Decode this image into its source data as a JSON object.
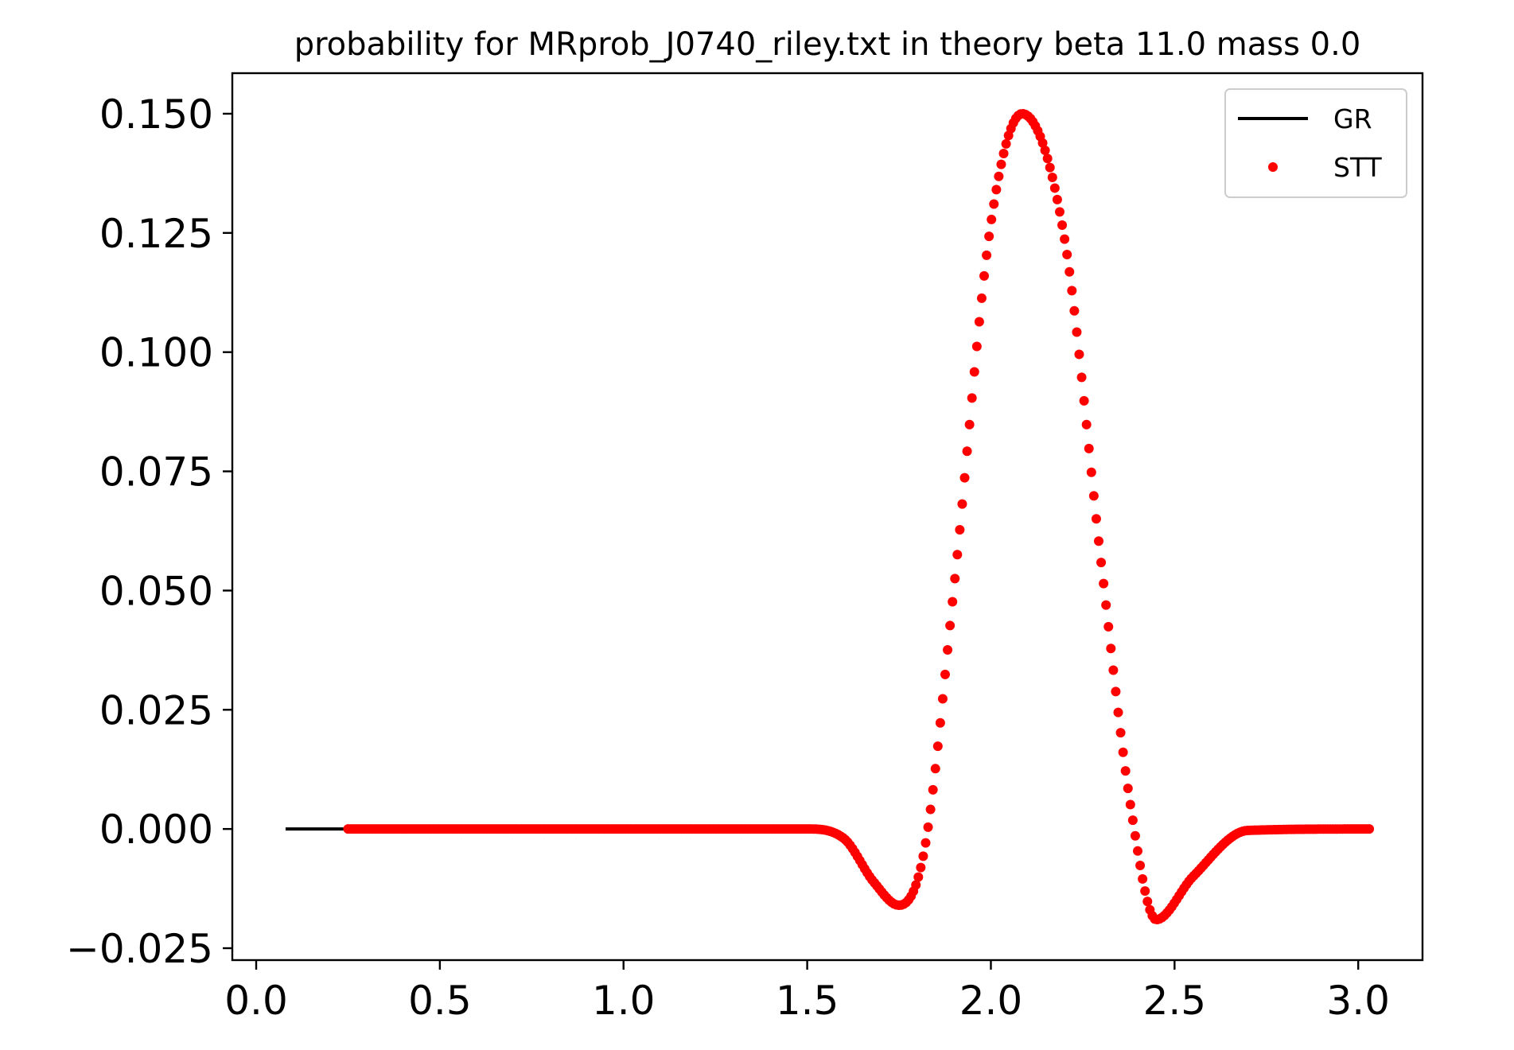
{
  "chart_data": {
    "type": "scatter",
    "title": "probability for MRprob_J0740_riley.txt in theory beta 11.0 mass 0.0",
    "xlabel": "",
    "ylabel": "",
    "xlim": [
      -0.065,
      3.175
    ],
    "ylim": [
      -0.0275,
      0.1585
    ],
    "x_ticks": [
      0.0,
      0.5,
      1.0,
      1.5,
      2.0,
      2.5,
      3.0
    ],
    "x_tick_labels": [
      "0.0",
      "0.5",
      "1.0",
      "1.5",
      "2.0",
      "2.5",
      "3.0"
    ],
    "y_ticks": [
      -0.025,
      0.0,
      0.025,
      0.05,
      0.075,
      0.1,
      0.125,
      0.15
    ],
    "y_tick_labels": [
      "−0.025",
      "0.000",
      "0.025",
      "0.050",
      "0.075",
      "0.100",
      "0.125",
      "0.150"
    ],
    "grid": false,
    "legend_position": "top-right",
    "series": [
      {
        "name": "GR",
        "style": "line",
        "color": "#000000",
        "x": [
          0.08,
          0.25
        ],
        "y": [
          0.0,
          0.0
        ]
      },
      {
        "name": "STT",
        "style": "points",
        "color": "#ff0000",
        "x_range": [
          0.25,
          3.03
        ],
        "point_count": 420,
        "samples_x": [
          0.25,
          1.5,
          1.6,
          1.68,
          1.75,
          1.82,
          1.9,
          2.0,
          2.085,
          2.2,
          2.3,
          2.38,
          2.45,
          2.55,
          2.7,
          3.03
        ],
        "samples_y": [
          0.0,
          0.0,
          -0.002,
          -0.011,
          -0.016,
          -0.004,
          0.051,
          0.127,
          0.15,
          0.124,
          0.056,
          0.005,
          -0.019,
          -0.01,
          -0.0003,
          0.0
        ]
      }
    ]
  }
}
